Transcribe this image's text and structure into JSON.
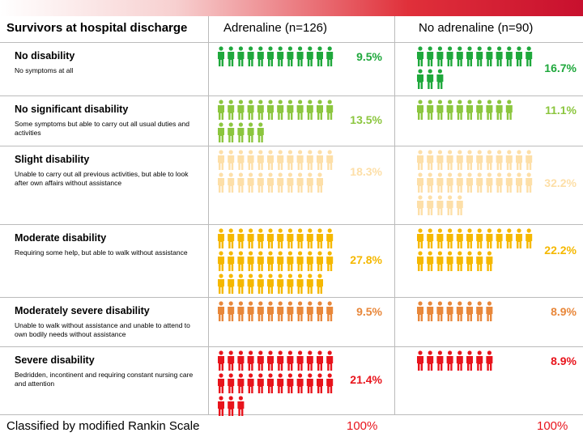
{
  "header": {
    "title": "Survivors at hospital discharge",
    "columns": [
      "Adrenaline (n=126)",
      "No adrenaline (n=90)"
    ]
  },
  "rows": [
    {
      "label": "No disability",
      "description": "No symptoms at all",
      "color": "#1fa83c",
      "cells": [
        {
          "icons": 12,
          "percent": "9.5%"
        },
        {
          "icons": 15,
          "percent": "16.7%"
        }
      ]
    },
    {
      "label": "No significant disability",
      "description": "Some symptoms but able to carry out all usual duties and activities",
      "color": "#8cc63f",
      "cells": [
        {
          "icons": 17,
          "percent": "13.5%"
        },
        {
          "icons": 10,
          "percent": "11.1%"
        }
      ]
    },
    {
      "label": "Slight disability",
      "description": "Unable to carry out all previous activities, but able to look after own affairs without assistance",
      "color": "#fddfa8",
      "cells": [
        {
          "icons": 23,
          "percent": "18.3%"
        },
        {
          "icons": 29,
          "percent": "32.2%"
        }
      ]
    },
    {
      "label": "Moderate disability",
      "description": "Requiring some help, but able to walk without assistance",
      "color": "#f5b800",
      "cells": [
        {
          "icons": 35,
          "percent": "27.8%"
        },
        {
          "icons": 20,
          "percent": "22.2%"
        }
      ]
    },
    {
      "label": "Moderately severe disability",
      "description": "Unable to walk without assistance and unable to attend to own bodily needs without assistance",
      "color": "#e8873a",
      "cells": [
        {
          "icons": 12,
          "percent": "9.5%"
        },
        {
          "icons": 8,
          "percent": "8.9%"
        }
      ]
    },
    {
      "label": "Severe disability",
      "description": "Bedridden, incontinent and requiring constant nursing care and attention",
      "color": "#e8141c",
      "cells": [
        {
          "icons": 27,
          "percent": "21.4%"
        },
        {
          "icons": 8,
          "percent": "8.9%"
        }
      ]
    }
  ],
  "footer": {
    "note": "Classified by modified Rankin Scale",
    "totals": [
      "100%",
      "100%"
    ]
  }
}
